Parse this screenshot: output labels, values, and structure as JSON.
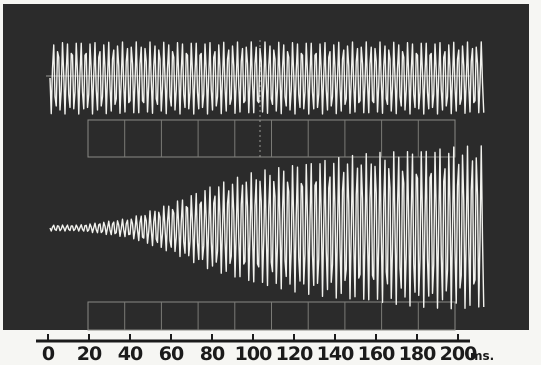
{
  "chart_data": {
    "type": "line",
    "title": "",
    "xlabel": "ms.",
    "ylabel": "",
    "xlim": [
      0,
      200
    ],
    "x_ticks": [
      0,
      20,
      40,
      60,
      80,
      100,
      120,
      140,
      160,
      180,
      200
    ],
    "x_tick_labels": [
      "0",
      "20",
      "40",
      "60",
      "80",
      "100",
      "120",
      "140",
      "160",
      "180",
      "200"
    ],
    "unit_label": "ms.",
    "grid": true,
    "legend": "none",
    "colors": {
      "background": "#f6f6f3",
      "screen": "#2b2b2b",
      "trace": "#f2f2ee",
      "axis": "#1b1b1b"
    },
    "series": [
      {
        "role": "upper-trace",
        "x": [
          0,
          200
        ],
        "relative_amplitude": [
          1.0,
          1.0
        ]
      },
      {
        "role": "lower-trace",
        "x": [
          0,
          20,
          40,
          60,
          80,
          100,
          120,
          140,
          160,
          180,
          200
        ],
        "relative_amplitude": [
          0.0,
          0.05,
          0.12,
          0.3,
          0.52,
          0.68,
          0.78,
          0.86,
          0.92,
          0.96,
          1.0
        ]
      }
    ]
  }
}
